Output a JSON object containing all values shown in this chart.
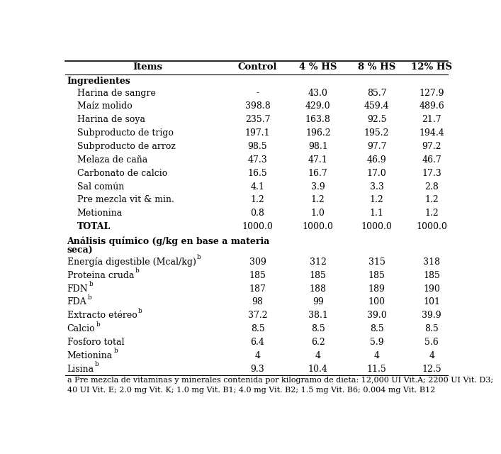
{
  "columns": [
    "Items",
    "Control",
    "4 % HS",
    "8 % HS",
    "12% HS"
  ],
  "rows": [
    {
      "text": "Ingredientes",
      "type": "section_header",
      "sup": "",
      "values": [
        "",
        "",
        "",
        ""
      ]
    },
    {
      "text": "   Harina de sangre",
      "type": "data",
      "sup": "",
      "values": [
        "-",
        "43.0",
        "85.7",
        "127.9"
      ]
    },
    {
      "text": "   Maíz molido",
      "type": "data",
      "sup": "",
      "values": [
        "398.8",
        "429.0",
        "459.4",
        "489.6"
      ]
    },
    {
      "text": "   Harina de soya",
      "type": "data",
      "sup": "",
      "values": [
        "235.7",
        "163.8",
        "92.5",
        "21.7"
      ]
    },
    {
      "text": "   Subproducto de trigo",
      "type": "data",
      "sup": "",
      "values": [
        "197.1",
        "196.2",
        "195.2",
        "194.4"
      ]
    },
    {
      "text": "   Subproducto de arroz",
      "type": "data",
      "sup": "",
      "values": [
        "98.5",
        "98.1",
        "97.7",
        "97.2"
      ]
    },
    {
      "text": "   Melaza de caña",
      "type": "data",
      "sup": "",
      "values": [
        "47.3",
        "47.1",
        "46.9",
        "46.7"
      ]
    },
    {
      "text": "   Carbonato de calcio",
      "type": "data",
      "sup": "",
      "values": [
        "16.5",
        "16.7",
        "17.0",
        "17.3"
      ]
    },
    {
      "text": "   Sal común",
      "type": "data",
      "sup": "",
      "values": [
        "4.1",
        "3.9",
        "3.3",
        "2.8"
      ]
    },
    {
      "text": "   Pre mezcla vit & min.",
      "type": "data",
      "sup": "",
      "values": [
        "1.2",
        "1.2",
        "1.2",
        "1.2"
      ]
    },
    {
      "text": "   Metionina",
      "type": "data",
      "sup": "",
      "values": [
        "0.8",
        "1.0",
        "1.1",
        "1.2"
      ]
    },
    {
      "text": "   TOTAL",
      "type": "total",
      "sup": "",
      "values": [
        "1000.0",
        "1000.0",
        "1000.0",
        "1000.0"
      ]
    },
    {
      "text": "Análisis químico (g/kg en base a materia",
      "text2": "seca)",
      "type": "section_header2",
      "sup": "",
      "values": [
        "",
        "",
        "",
        ""
      ]
    },
    {
      "text": "Energía digestible (Mcal/kg)",
      "type": "data2",
      "sup": "b",
      "values": [
        "309",
        "312",
        "315",
        "318"
      ]
    },
    {
      "text": "Proteina cruda",
      "type": "data2",
      "sup": "b",
      "values": [
        "185",
        "185",
        "185",
        "185"
      ]
    },
    {
      "text": "FDN",
      "type": "data2",
      "sup": "b",
      "values": [
        "187",
        "188",
        "189",
        "190"
      ]
    },
    {
      "text": "FDA",
      "type": "data2",
      "sup": "b",
      "values": [
        "98",
        "99",
        "100",
        "101"
      ]
    },
    {
      "text": "Extracto etéreo",
      "type": "data2",
      "sup": "b",
      "values": [
        "37.2",
        "38.1",
        "39.0",
        "39.9"
      ]
    },
    {
      "text": "Calcio",
      "type": "data2",
      "sup": "b",
      "values": [
        "8.5",
        "8.5",
        "8.5",
        "8.5"
      ]
    },
    {
      "text": "Fosforo total",
      "type": "data2",
      "sup": "",
      "values": [
        "6.4",
        "6.2",
        "5.9",
        "5.6"
      ]
    },
    {
      "text": "Metionina",
      "type": "data2",
      "sup": "b",
      "values": [
        "4",
        "4",
        "4",
        "4"
      ]
    },
    {
      "text": "Lisina",
      "type": "data2",
      "sup": "b",
      "values": [
        "9.3",
        "10.4",
        "11.5",
        "12.5"
      ]
    }
  ],
  "footnote1": "a Pre mezcla de vitaminas y minerales contenida por kilogramo de dieta: 12,000 UI Vit.A; 2200 UI Vit. D3;",
  "footnote2": "40 UI Vit. E; 2.0 mg Vit. K; 1.0 mg Vit. B1; 4.0 mg Vit. B2; 1.5 mg Vit. B6; 0.004 mg Vit. B12",
  "font_size": 9.0,
  "font_family": "DejaVu Serif",
  "bg_color": "#ffffff",
  "text_color": "#000000"
}
